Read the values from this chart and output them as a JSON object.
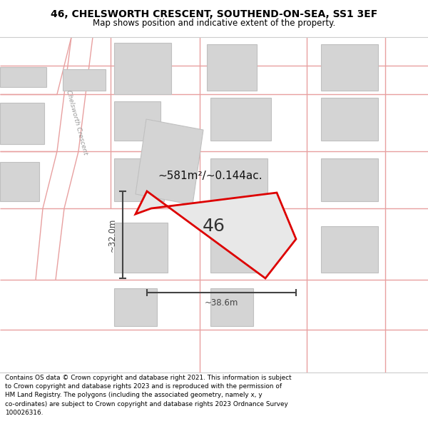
{
  "title_line1": "46, CHELSWORTH CRESCENT, SOUTHEND-ON-SEA, SS1 3EF",
  "title_line2": "Map shows position and indicative extent of the property.",
  "footer_text": "Contains OS data © Crown copyright and database right 2021. This information is subject\nto Crown copyright and database rights 2023 and is reproduced with the permission of\nHM Land Registry. The polygons (including the associated geometry, namely x, y\nco-ordinates) are subject to Crown copyright and database rights 2023 Ordnance Survey\n100026316.",
  "area_label": "~581m²/~0.144ac.",
  "number_label": "46",
  "dim_horiz": "~38.6m",
  "dim_vert": "~32.0m",
  "road_label": "Chelsworth Crescent",
  "map_bg": "#eeeeee",
  "plot_outline_color": "#dd0000",
  "plot_fill_color": "#e8e8e8",
  "building_fill": "#d4d4d4",
  "building_outline": "#c0c0c0",
  "road_line_color": "#e8a0a0",
  "dim_line_color": "#444444",
  "white": "#ffffff"
}
